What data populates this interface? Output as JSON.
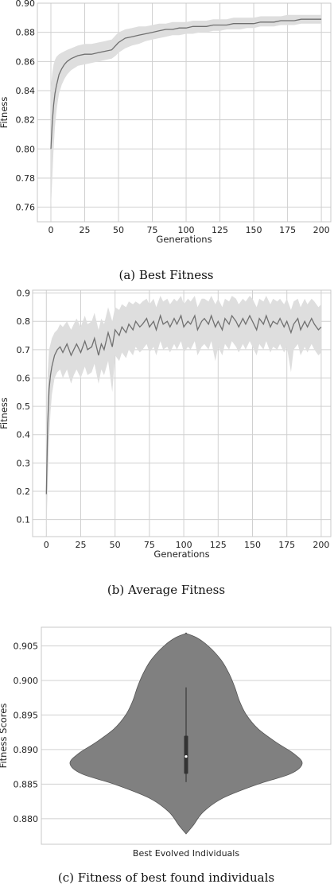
{
  "chart_data": [
    {
      "type": "line",
      "xlabel": "Generations",
      "ylabel": "Fitness",
      "caption": "(a) Best Fitness",
      "xlim": [
        -10,
        207
      ],
      "ylim": [
        0.75,
        0.9
      ],
      "xticks": [
        0,
        25,
        50,
        75,
        100,
        125,
        150,
        175,
        200
      ],
      "yticks": [
        0.76,
        0.78,
        0.8,
        0.82,
        0.84,
        0.86,
        0.88,
        0.9
      ],
      "ytick_decimals": 2,
      "grid": true,
      "line_color": "#707070",
      "band_color": "#dedede",
      "series": [
        {
          "x": [
            0,
            1,
            2,
            3,
            4,
            5,
            6,
            8,
            10,
            12,
            15,
            20,
            25,
            30,
            35,
            40,
            45,
            48,
            50,
            55,
            60,
            65,
            70,
            75,
            80,
            85,
            90,
            95,
            100,
            105,
            110,
            115,
            120,
            125,
            130,
            135,
            140,
            145,
            150,
            155,
            160,
            165,
            170,
            175,
            180,
            185,
            190,
            195,
            200
          ],
          "y": [
            0.8,
            0.818,
            0.83,
            0.838,
            0.843,
            0.847,
            0.851,
            0.855,
            0.858,
            0.86,
            0.862,
            0.864,
            0.865,
            0.865,
            0.866,
            0.867,
            0.868,
            0.871,
            0.873,
            0.876,
            0.877,
            0.878,
            0.879,
            0.88,
            0.881,
            0.882,
            0.882,
            0.883,
            0.883,
            0.884,
            0.884,
            0.884,
            0.885,
            0.885,
            0.885,
            0.886,
            0.886,
            0.886,
            0.886,
            0.887,
            0.887,
            0.887,
            0.888,
            0.888,
            0.888,
            0.889,
            0.889,
            0.889,
            0.889
          ],
          "lower": [
            0.758,
            0.78,
            0.8,
            0.815,
            0.825,
            0.832,
            0.838,
            0.844,
            0.848,
            0.851,
            0.854,
            0.857,
            0.858,
            0.859,
            0.86,
            0.861,
            0.862,
            0.864,
            0.866,
            0.869,
            0.871,
            0.872,
            0.874,
            0.875,
            0.876,
            0.877,
            0.878,
            0.878,
            0.879,
            0.879,
            0.88,
            0.88,
            0.881,
            0.881,
            0.882,
            0.882,
            0.882,
            0.883,
            0.883,
            0.884,
            0.884,
            0.884,
            0.885,
            0.885,
            0.885,
            0.886,
            0.886,
            0.886,
            0.886
          ],
          "upper": [
            0.842,
            0.852,
            0.858,
            0.861,
            0.863,
            0.864,
            0.865,
            0.866,
            0.867,
            0.868,
            0.869,
            0.871,
            0.872,
            0.872,
            0.873,
            0.874,
            0.875,
            0.878,
            0.88,
            0.882,
            0.883,
            0.884,
            0.884,
            0.885,
            0.886,
            0.886,
            0.887,
            0.887,
            0.887,
            0.888,
            0.888,
            0.888,
            0.889,
            0.889,
            0.889,
            0.89,
            0.89,
            0.89,
            0.89,
            0.891,
            0.891,
            0.891,
            0.891,
            0.892,
            0.892,
            0.892,
            0.892,
            0.892,
            0.892
          ]
        }
      ]
    },
    {
      "type": "line",
      "xlabel": "Generations",
      "ylabel": "Fitness",
      "caption": "(b) Average Fitness",
      "xlim": [
        -10,
        207
      ],
      "ylim": [
        0.04,
        0.91
      ],
      "xticks": [
        0,
        25,
        50,
        75,
        100,
        125,
        150,
        175,
        200
      ],
      "yticks": [
        0.1,
        0.2,
        0.3,
        0.4,
        0.5,
        0.6,
        0.7,
        0.8,
        0.9
      ],
      "ytick_decimals": 1,
      "grid": true,
      "line_color": "#707070",
      "band_color": "#dedede",
      "series": [
        {
          "x": [
            0,
            1,
            2,
            3,
            4,
            5,
            6,
            8,
            10,
            12,
            15,
            18,
            20,
            22,
            25,
            28,
            30,
            33,
            35,
            38,
            40,
            42,
            45,
            48,
            50,
            53,
            55,
            58,
            60,
            63,
            65,
            68,
            70,
            73,
            75,
            78,
            80,
            83,
            85,
            88,
            90,
            93,
            95,
            98,
            100,
            103,
            105,
            108,
            110,
            113,
            115,
            118,
            120,
            123,
            125,
            128,
            130,
            133,
            135,
            138,
            140,
            143,
            145,
            148,
            150,
            153,
            155,
            158,
            160,
            163,
            165,
            168,
            170,
            173,
            175,
            178,
            180,
            183,
            185,
            188,
            190,
            193,
            195,
            198,
            200
          ],
          "y": [
            0.19,
            0.44,
            0.56,
            0.61,
            0.64,
            0.66,
            0.68,
            0.7,
            0.71,
            0.69,
            0.72,
            0.68,
            0.7,
            0.72,
            0.69,
            0.73,
            0.7,
            0.71,
            0.74,
            0.68,
            0.72,
            0.7,
            0.76,
            0.71,
            0.77,
            0.75,
            0.78,
            0.76,
            0.79,
            0.77,
            0.8,
            0.78,
            0.79,
            0.81,
            0.78,
            0.8,
            0.77,
            0.82,
            0.79,
            0.8,
            0.78,
            0.81,
            0.79,
            0.82,
            0.78,
            0.8,
            0.79,
            0.82,
            0.77,
            0.8,
            0.81,
            0.79,
            0.82,
            0.78,
            0.8,
            0.77,
            0.81,
            0.79,
            0.82,
            0.8,
            0.78,
            0.81,
            0.79,
            0.82,
            0.8,
            0.77,
            0.81,
            0.79,
            0.82,
            0.78,
            0.8,
            0.79,
            0.81,
            0.78,
            0.8,
            0.76,
            0.79,
            0.81,
            0.77,
            0.8,
            0.78,
            0.81,
            0.79,
            0.77,
            0.78
          ],
          "lower": [
            0.06,
            0.22,
            0.38,
            0.48,
            0.54,
            0.57,
            0.6,
            0.62,
            0.63,
            0.6,
            0.63,
            0.58,
            0.61,
            0.63,
            0.6,
            0.64,
            0.61,
            0.62,
            0.65,
            0.58,
            0.63,
            0.61,
            0.66,
            0.55,
            0.68,
            0.66,
            0.69,
            0.67,
            0.7,
            0.68,
            0.71,
            0.69,
            0.7,
            0.72,
            0.69,
            0.71,
            0.68,
            0.73,
            0.7,
            0.71,
            0.69,
            0.72,
            0.7,
            0.73,
            0.69,
            0.71,
            0.7,
            0.73,
            0.68,
            0.71,
            0.72,
            0.7,
            0.73,
            0.66,
            0.71,
            0.68,
            0.72,
            0.7,
            0.73,
            0.71,
            0.69,
            0.72,
            0.7,
            0.73,
            0.71,
            0.68,
            0.72,
            0.7,
            0.73,
            0.69,
            0.71,
            0.7,
            0.72,
            0.69,
            0.71,
            0.62,
            0.7,
            0.72,
            0.68,
            0.71,
            0.69,
            0.72,
            0.7,
            0.68,
            0.69
          ],
          "upper": [
            0.3,
            0.62,
            0.7,
            0.72,
            0.74,
            0.75,
            0.76,
            0.77,
            0.79,
            0.78,
            0.8,
            0.77,
            0.79,
            0.81,
            0.78,
            0.82,
            0.79,
            0.8,
            0.83,
            0.77,
            0.81,
            0.79,
            0.85,
            0.8,
            0.85,
            0.84,
            0.86,
            0.85,
            0.87,
            0.86,
            0.87,
            0.86,
            0.87,
            0.88,
            0.86,
            0.88,
            0.85,
            0.89,
            0.87,
            0.88,
            0.86,
            0.88,
            0.87,
            0.89,
            0.86,
            0.88,
            0.87,
            0.89,
            0.85,
            0.88,
            0.88,
            0.87,
            0.89,
            0.86,
            0.88,
            0.85,
            0.88,
            0.87,
            0.89,
            0.88,
            0.86,
            0.88,
            0.87,
            0.89,
            0.88,
            0.85,
            0.88,
            0.87,
            0.89,
            0.86,
            0.88,
            0.87,
            0.88,
            0.86,
            0.88,
            0.84,
            0.87,
            0.88,
            0.85,
            0.88,
            0.86,
            0.88,
            0.87,
            0.85,
            0.86
          ]
        }
      ]
    },
    {
      "type": "violin",
      "xlabel": "Best Evolved Individuals",
      "ylabel": "Fitness Scores",
      "caption": "(c) Fitness of best found individuals",
      "ylim": [
        0.8763,
        0.9077
      ],
      "yticks": [
        0.88,
        0.885,
        0.89,
        0.895,
        0.9,
        0.905
      ],
      "ytick_decimals": 3,
      "grid": true,
      "fill_color": "#808080",
      "violin": {
        "y": [
          0.8778,
          0.879,
          0.881,
          0.883,
          0.885,
          0.8865,
          0.888,
          0.8895,
          0.891,
          0.893,
          0.895,
          0.897,
          0.899,
          0.901,
          0.903,
          0.905,
          0.9062,
          0.9068
        ],
        "width": [
          0.0,
          0.06,
          0.15,
          0.32,
          0.62,
          0.9,
          1.0,
          0.92,
          0.78,
          0.62,
          0.52,
          0.46,
          0.42,
          0.37,
          0.3,
          0.19,
          0.09,
          0.0
        ]
      },
      "box": {
        "q1": 0.8865,
        "median": 0.889,
        "q3": 0.892,
        "whisker_low": 0.8853,
        "whisker_high": 0.899
      }
    }
  ]
}
